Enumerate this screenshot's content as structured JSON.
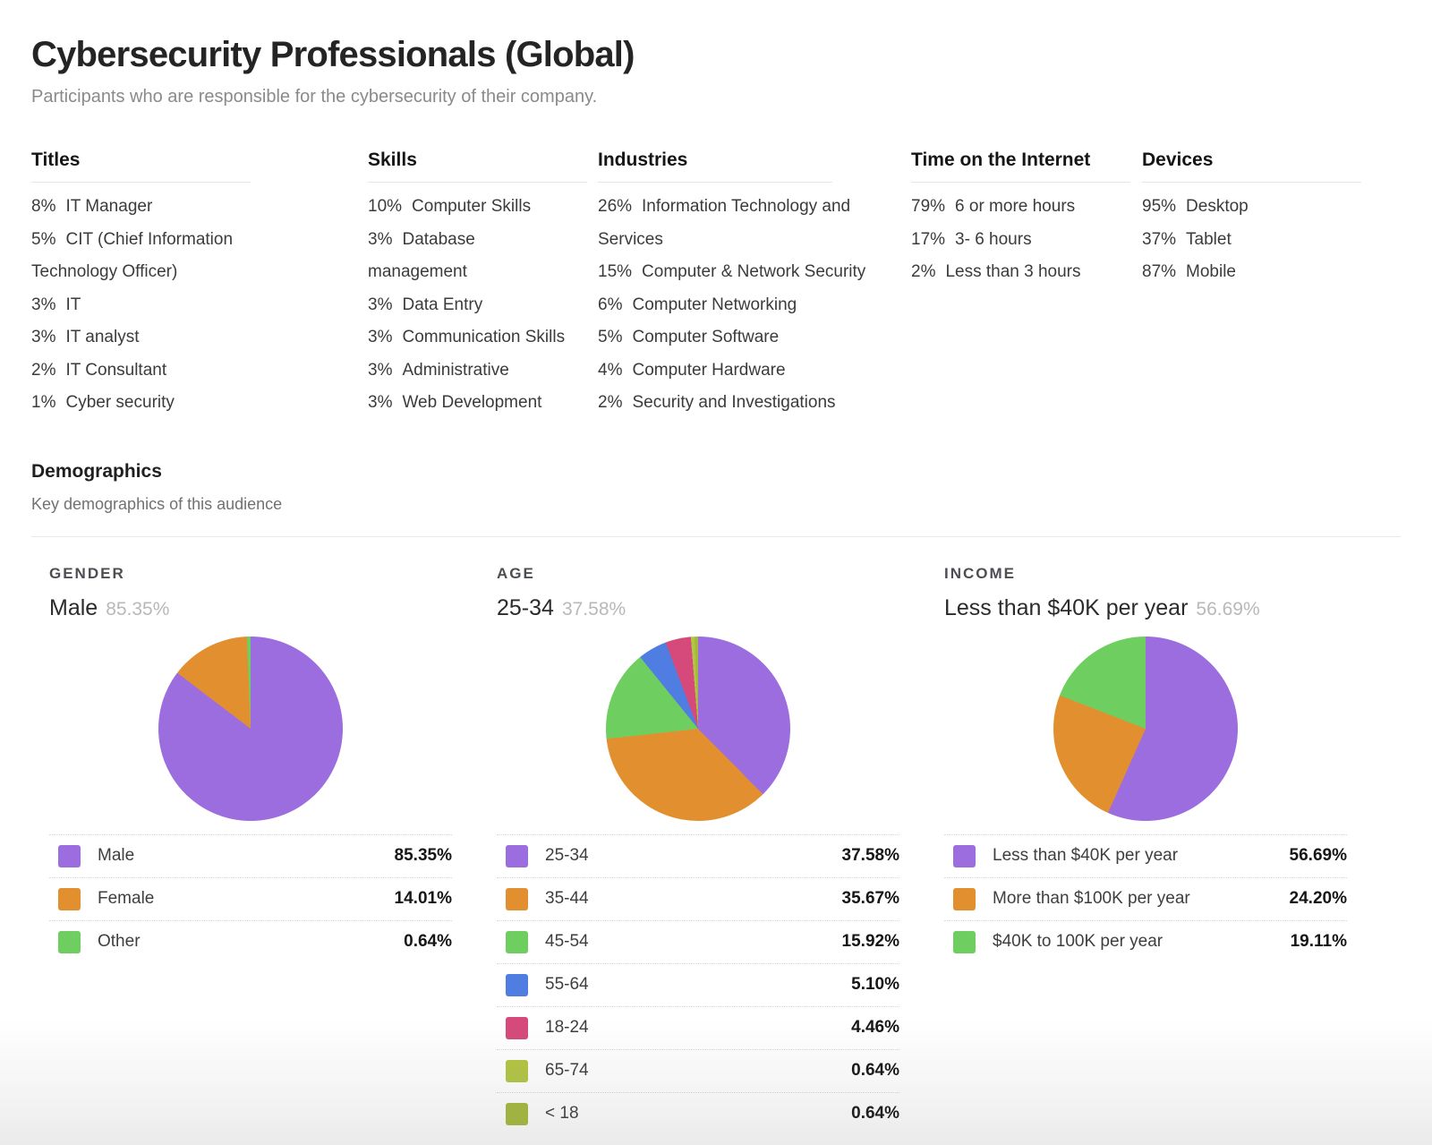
{
  "page": {
    "title": "Cybersecurity Professionals (Global)",
    "subtitle": "Participants who are responsible for the cybersecurity of their company."
  },
  "stats_columns": [
    {
      "heading": "Titles",
      "items": [
        [
          "8%",
          "IT Manager"
        ],
        [
          "5%",
          "CIT (Chief Information Technology Officer)"
        ],
        [
          "3%",
          "IT"
        ],
        [
          "3%",
          "IT analyst"
        ],
        [
          "2%",
          "IT Consultant"
        ],
        [
          "1%",
          "Cyber security"
        ]
      ]
    },
    {
      "heading": "Skills",
      "items": [
        [
          "10%",
          "Computer Skills"
        ],
        [
          "3%",
          "Database management"
        ],
        [
          "3%",
          "Data Entry"
        ],
        [
          "3%",
          "Communication Skills"
        ],
        [
          "3%",
          "Administrative"
        ],
        [
          "3%",
          "Web Development"
        ]
      ]
    },
    {
      "heading": "Industries",
      "items": [
        [
          "26%",
          "Information Technology and Services"
        ],
        [
          "15%",
          "Computer & Network Security"
        ],
        [
          "6%",
          "Computer Networking"
        ],
        [
          "5%",
          "Computer Software"
        ],
        [
          "4%",
          "Computer Hardware"
        ],
        [
          "2%",
          "Security and Investigations"
        ]
      ]
    },
    {
      "heading": "Time on the Internet",
      "items": [
        [
          "79%",
          "6 or more hours"
        ],
        [
          "17%",
          "3- 6 hours"
        ],
        [
          "2%",
          "Less than 3 hours"
        ]
      ]
    },
    {
      "heading": "Devices",
      "items": [
        [
          "95%",
          "Desktop"
        ],
        [
          "37%",
          "Tablet"
        ],
        [
          "87%",
          "Mobile"
        ]
      ]
    }
  ],
  "demographics": {
    "heading": "Demographics",
    "subheading": "Key demographics of this audience"
  },
  "chart_data": [
    {
      "type": "pie",
      "section": "GENDER",
      "top_category": "Male",
      "top_value": "85.35%",
      "categories": [
        "Male",
        "Female",
        "Other"
      ],
      "values": [
        85.35,
        14.01,
        0.64
      ],
      "labels": [
        "85.35%",
        "14.01%",
        "0.64%"
      ],
      "colors": [
        "#9c6ddf",
        "#e2902f",
        "#6ecf60"
      ],
      "legend_position": "bottom",
      "start_angle_deg": 0,
      "direction": "clockwise"
    },
    {
      "type": "pie",
      "section": "AGE",
      "top_category": "25-34",
      "top_value": "37.58%",
      "categories": [
        "25-34",
        "35-44",
        "45-54",
        "55-64",
        "18-24",
        "65-74",
        "< 18"
      ],
      "values": [
        37.58,
        35.67,
        15.92,
        5.1,
        4.46,
        0.64,
        0.64
      ],
      "labels": [
        "37.58%",
        "35.67%",
        "15.92%",
        "5.10%",
        "4.46%",
        "0.64%",
        "0.64%"
      ],
      "colors": [
        "#9c6ddf",
        "#e2902f",
        "#6ecf60",
        "#4f7de2",
        "#d54a7b",
        "#b3c544",
        "#a5ba3d"
      ],
      "legend_position": "bottom",
      "start_angle_deg": 0,
      "direction": "clockwise"
    },
    {
      "type": "pie",
      "section": "INCOME",
      "top_category": "Less than $40K per year",
      "top_value": "56.69%",
      "categories": [
        "Less than $40K per year",
        "More than $100K per year",
        "$40K to 100K per year"
      ],
      "values": [
        56.69,
        24.2,
        19.11
      ],
      "labels": [
        "56.69%",
        "24.20%",
        "19.11%"
      ],
      "colors": [
        "#9c6ddf",
        "#e2902f",
        "#6ecf60"
      ],
      "legend_position": "bottom",
      "start_angle_deg": 0,
      "direction": "clockwise"
    }
  ]
}
